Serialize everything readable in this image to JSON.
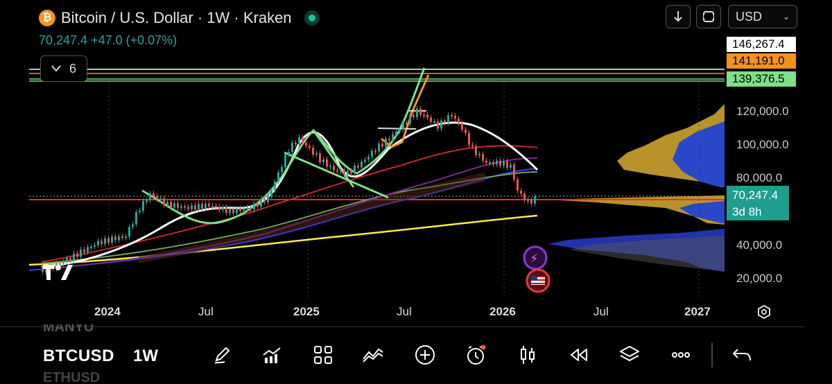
{
  "header": {
    "title": "Bitcoin / U.S. Dollar · 1W · Kraken",
    "logo_glyph": "₿",
    "price_change": "70,247.4  +47.0 (+0.07%)"
  },
  "toolbar_top": {
    "currency": "USD",
    "download_icon": "download-icon",
    "fullscreen_icon": "fullscreen-icon"
  },
  "indicators": {
    "count": "6"
  },
  "price_scale": {
    "tags": [
      "146,267.4",
      "141,191.0",
      "139,376.5"
    ],
    "ticks": [
      "120,000.0",
      "100,000.0",
      "80,000.0",
      "40,000.0",
      "20,000.0"
    ],
    "last_price": "70,247.4",
    "countdown": "3d 8h"
  },
  "time_axis": [
    "2024",
    "Jul",
    "2025",
    "Jul",
    "2026",
    "Jul",
    "2027"
  ],
  "bottom_toolbar": {
    "watchlist_prev": "MANYU",
    "symbol": "BTCUSD",
    "interval": "1W",
    "watchlist_next": "ETHUSD",
    "icons": [
      "pen-icon",
      "indicators-icon",
      "grid-icon",
      "compare-icon",
      "add-icon",
      "alert-icon",
      "candles-icon",
      "replay-icon",
      "layers-icon",
      "more-icon",
      "undo-icon"
    ]
  },
  "colors": {
    "up": "#26a69a",
    "down": "#ef5350",
    "brand_orange": "#f7931a",
    "live_green": "#19c39c"
  }
}
